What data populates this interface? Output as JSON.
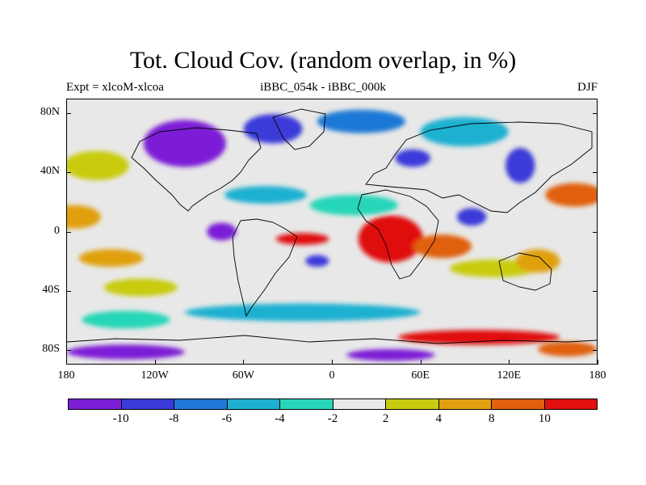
{
  "title": "Tot. Cloud Cov. (random overlap, in %)",
  "subtitle_left": "Expt = xlcoM-xlcoa",
  "subtitle_center": "iBBC_054k - iBBC_000k",
  "subtitle_right": "DJF",
  "y_ticks": [
    {
      "label": "80N",
      "lat": 80
    },
    {
      "label": "40N",
      "lat": 40
    },
    {
      "label": "0",
      "lat": 0
    },
    {
      "label": "40S",
      "lat": -40
    },
    {
      "label": "80S",
      "lat": -80
    }
  ],
  "x_ticks": [
    {
      "label": "180",
      "lon": -180
    },
    {
      "label": "120W",
      "lon": -120
    },
    {
      "label": "60W",
      "lon": -60
    },
    {
      "label": "0",
      "lon": 0
    },
    {
      "label": "60E",
      "lon": 60
    },
    {
      "label": "120E",
      "lon": 120
    },
    {
      "label": "180",
      "lon": 180
    }
  ],
  "colorbar": {
    "colors": [
      "#7b1fd6",
      "#3b3bd9",
      "#1f78d6",
      "#1fb0d1",
      "#27d6b8",
      "#e8e8e8",
      "#c8cc10",
      "#e0a010",
      "#e06010",
      "#e01010"
    ],
    "labels": [
      {
        "label": "-10",
        "index": 1
      },
      {
        "label": "-8",
        "index": 2
      },
      {
        "label": "-6",
        "index": 3
      },
      {
        "label": "-4",
        "index": 4
      },
      {
        "label": "-2",
        "index": 5
      },
      {
        "label": "2",
        "index": 6
      },
      {
        "label": "4",
        "index": 7
      },
      {
        "label": "8",
        "index": 8
      },
      {
        "label": "10",
        "index": 9
      }
    ]
  },
  "anomaly_regions": [
    {
      "name": "north-america-negative",
      "lon": -100,
      "lat": 60,
      "rlon": 28,
      "rlat": 16,
      "color": "#7b1fd6"
    },
    {
      "name": "north-atlantic-negative",
      "lon": -40,
      "lat": 70,
      "rlon": 20,
      "rlat": 10,
      "color": "#3b3bd9"
    },
    {
      "name": "arctic-blue",
      "lon": 20,
      "lat": 75,
      "rlon": 30,
      "rlat": 8,
      "color": "#1f78d6"
    },
    {
      "name": "siberia-teal",
      "lon": 90,
      "lat": 68,
      "rlon": 30,
      "rlat": 10,
      "color": "#1fb0d1"
    },
    {
      "name": "central-asia-negative",
      "lon": 55,
      "lat": 50,
      "rlon": 12,
      "rlat": 6,
      "color": "#3b3bd9"
    },
    {
      "name": "east-asia-negative",
      "lon": 128,
      "lat": 45,
      "rlon": 10,
      "rlat": 12,
      "color": "#3b3bd9"
    },
    {
      "name": "north-pacific-orange",
      "lon": 165,
      "lat": 25,
      "rlon": 20,
      "rlat": 8,
      "color": "#e06010"
    },
    {
      "name": "north-pacific-yellow",
      "lon": -160,
      "lat": 45,
      "rlon": 22,
      "rlat": 10,
      "color": "#c8cc10"
    },
    {
      "name": "central-pacific-orange",
      "lon": -175,
      "lat": 10,
      "rlon": 18,
      "rlat": 8,
      "color": "#e0a010"
    },
    {
      "name": "west-atlantic-teal",
      "lon": -45,
      "lat": 25,
      "rlon": 28,
      "rlat": 6,
      "color": "#1fb0d1"
    },
    {
      "name": "sahara-teal",
      "lon": 15,
      "lat": 18,
      "rlon": 30,
      "rlat": 7,
      "color": "#27d6b8"
    },
    {
      "name": "africa-positive",
      "lon": 40,
      "lat": -5,
      "rlon": 22,
      "rlat": 16,
      "color": "#e01010"
    },
    {
      "name": "indian-ocean-orange",
      "lon": 75,
      "lat": -10,
      "rlon": 20,
      "rlat": 8,
      "color": "#e06010"
    },
    {
      "name": "india-negative",
      "lon": 95,
      "lat": 10,
      "rlon": 10,
      "rlat": 6,
      "color": "#3b3bd9"
    },
    {
      "name": "amazon-negative",
      "lon": -75,
      "lat": 0,
      "rlon": 10,
      "rlat": 6,
      "color": "#7b1fd6"
    },
    {
      "name": "atlantic-equator-red",
      "lon": -20,
      "lat": -5,
      "rlon": 18,
      "rlat": 4,
      "color": "#e01010"
    },
    {
      "name": "south-atlantic-negative",
      "lon": -10,
      "lat": -20,
      "rlon": 8,
      "rlat": 4,
      "color": "#3b3bd9"
    },
    {
      "name": "south-pacific-orange",
      "lon": -150,
      "lat": -18,
      "rlon": 22,
      "rlat": 6,
      "color": "#e0a010"
    },
    {
      "name": "south-pacific-yellow",
      "lon": -130,
      "lat": -38,
      "rlon": 25,
      "rlat": 6,
      "color": "#c8cc10"
    },
    {
      "name": "indian-south-yellow",
      "lon": 110,
      "lat": -25,
      "rlon": 30,
      "rlat": 6,
      "color": "#c8cc10"
    },
    {
      "name": "australia-orange",
      "lon": 140,
      "lat": -20,
      "rlon": 15,
      "rlat": 8,
      "color": "#e0a010"
    },
    {
      "name": "southern-ocean-teal",
      "lon": -20,
      "lat": -55,
      "rlon": 80,
      "rlat": 6,
      "color": "#1fb0d1"
    },
    {
      "name": "southern-ocean-west-teal",
      "lon": -140,
      "lat": -60,
      "rlon": 30,
      "rlat": 6,
      "color": "#27d6b8"
    },
    {
      "name": "antarctic-red",
      "lon": 100,
      "lat": -72,
      "rlon": 55,
      "rlat": 5,
      "color": "#e01010"
    },
    {
      "name": "antarctic-purple",
      "lon": -140,
      "lat": -82,
      "rlon": 40,
      "rlat": 5,
      "color": "#7b1fd6"
    },
    {
      "name": "antarctic-purple-east",
      "lon": 40,
      "lat": -84,
      "rlon": 30,
      "rlat": 4,
      "color": "#7b1fd6"
    },
    {
      "name": "antarctic-orange-east",
      "lon": 160,
      "lat": -80,
      "rlon": 20,
      "rlat": 5,
      "color": "#e06010"
    }
  ]
}
